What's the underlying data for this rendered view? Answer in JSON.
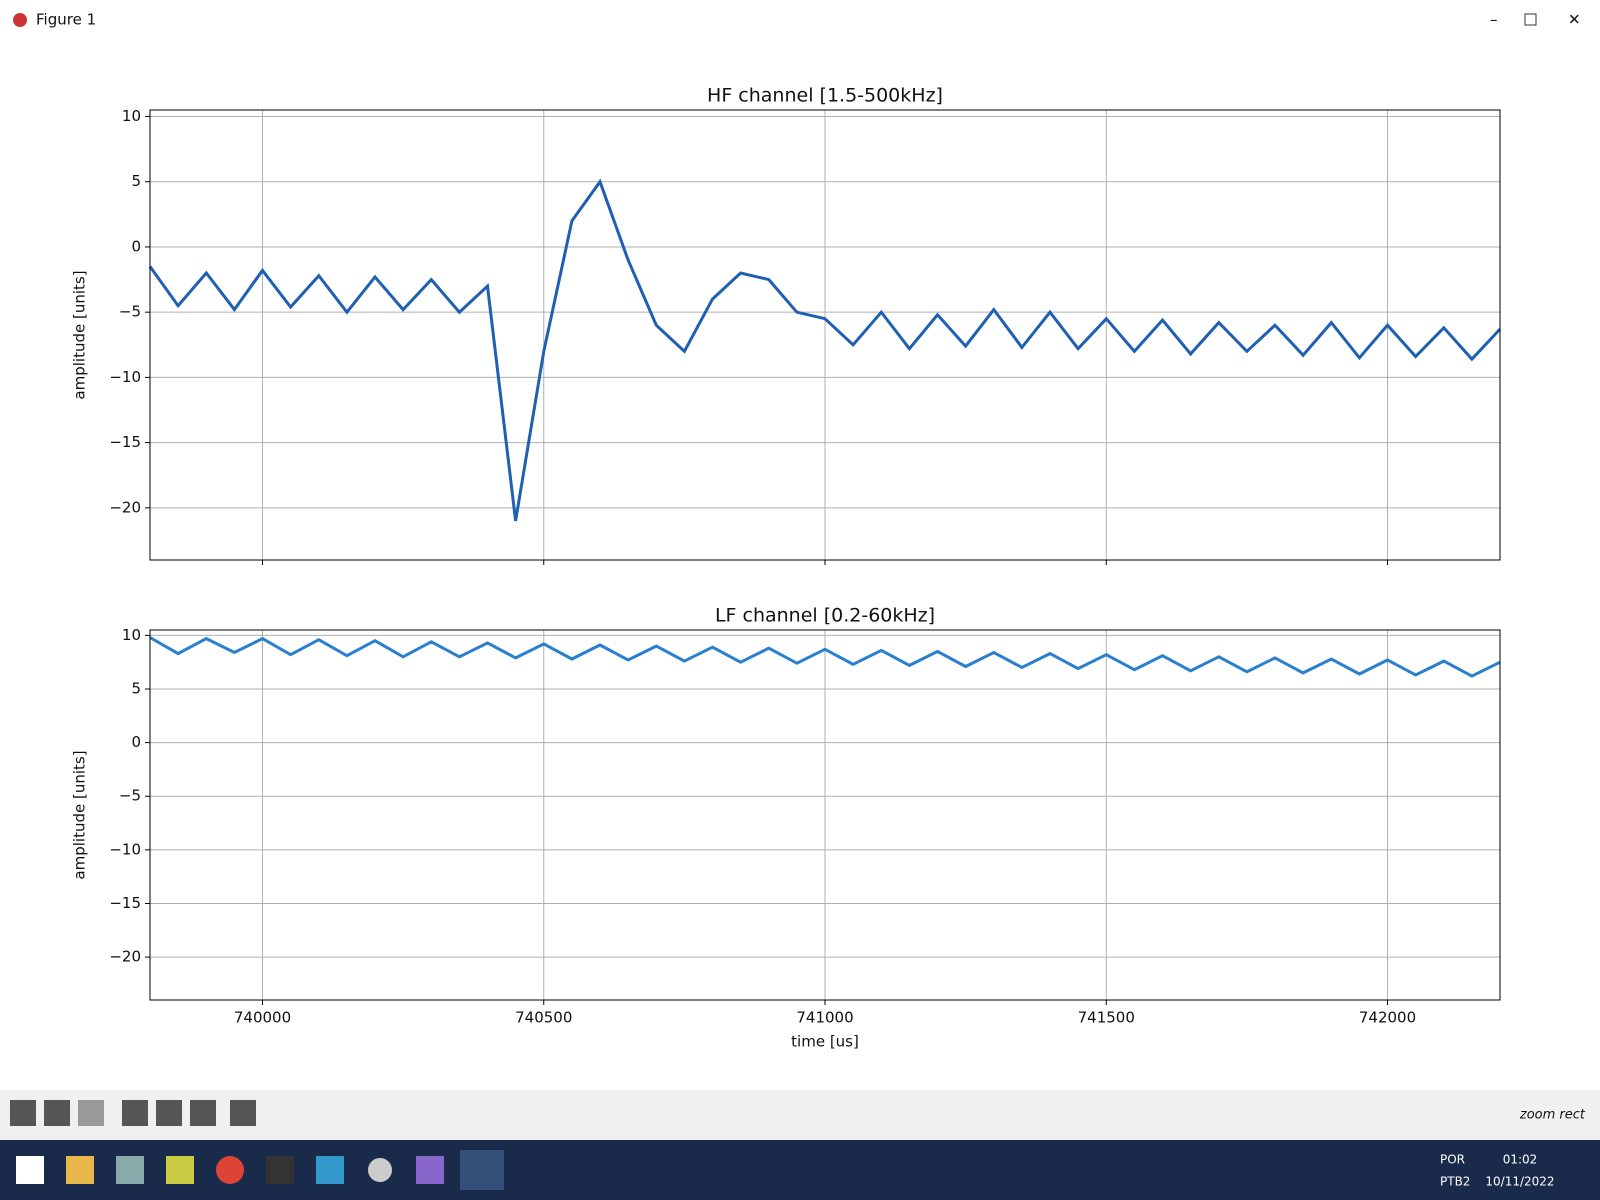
{
  "window": {
    "title": "Figure 1",
    "status": "zoom rect"
  },
  "taskbar": {
    "language": "POR",
    "layout": "PTB2",
    "time": "01:02",
    "date": "10/11/2022"
  },
  "chart_data": [
    {
      "type": "line",
      "title": "HF channel [1.5-500kHz]",
      "ylabel": "amplitude [units]",
      "color": "#1f5fb4",
      "grid": true,
      "xlim": [
        739800,
        742200
      ],
      "ylim": [
        -24,
        10.5
      ],
      "xticks": [
        740000,
        740500,
        741000,
        741500,
        742000
      ],
      "yticks": [
        {
          "value": -20,
          "label": "−20"
        },
        {
          "value": -15,
          "label": "−15"
        },
        {
          "value": -10,
          "label": "−10"
        },
        {
          "value": -5,
          "label": "−5"
        },
        0,
        5,
        10
      ],
      "x": [
        739800,
        739850,
        739900,
        739950,
        740000,
        740050,
        740100,
        740150,
        740200,
        740250,
        740300,
        740350,
        740400,
        740450,
        740500,
        740550,
        740600,
        740650,
        740700,
        740750,
        740800,
        740850,
        740900,
        740950,
        741000,
        741050,
        741100,
        741150,
        741200,
        741250,
        741300,
        741350,
        741400,
        741450,
        741500,
        741550,
        741600,
        741650,
        741700,
        741750,
        741800,
        741850,
        741900,
        741950,
        742000,
        742050,
        742100,
        742150,
        742200
      ],
      "values": [
        -1.5,
        -4.5,
        -2,
        -4.8,
        -1.8,
        -4.6,
        -2.2,
        -5,
        -2.3,
        -4.8,
        -2.5,
        -5,
        -3,
        -21,
        -8,
        2,
        5,
        -1,
        -6,
        -8,
        -4,
        -2,
        -2.5,
        -5,
        -5.5,
        -7.5,
        -5,
        -7.8,
        -5.2,
        -7.6,
        -4.8,
        -7.7,
        -5,
        -7.8,
        -5.5,
        -8,
        -5.6,
        -8.2,
        -5.8,
        -8,
        -6,
        -8.3,
        -5.8,
        -8.5,
        -6,
        -8.4,
        -6.2,
        -8.6,
        -6.3
      ]
    },
    {
      "type": "line",
      "title": "LF channel [0.2-60kHz]",
      "ylabel": "amplitude [units]",
      "xlabel": "time [us]",
      "color": "#2a7fd0",
      "grid": true,
      "xlim": [
        739800,
        742200
      ],
      "ylim": [
        -24,
        10.5
      ],
      "xticks": [
        740000,
        740500,
        741000,
        741500,
        742000
      ],
      "yticks": [
        {
          "value": -20,
          "label": "−20"
        },
        {
          "value": -15,
          "label": "−15"
        },
        {
          "value": -10,
          "label": "−10"
        },
        {
          "value": -5,
          "label": "−5"
        },
        0,
        5,
        10
      ],
      "x": [
        739800,
        739850,
        739900,
        739950,
        740000,
        740050,
        740100,
        740150,
        740200,
        740250,
        740300,
        740350,
        740400,
        740450,
        740500,
        740550,
        740600,
        740650,
        740700,
        740750,
        740800,
        740850,
        740900,
        740950,
        741000,
        741050,
        741100,
        741150,
        741200,
        741250,
        741300,
        741350,
        741400,
        741450,
        741500,
        741550,
        741600,
        741650,
        741700,
        741750,
        741800,
        741850,
        741900,
        741950,
        742000,
        742050,
        742100,
        742150,
        742200
      ],
      "values": [
        9.8,
        8.3,
        9.7,
        8.4,
        9.7,
        8.2,
        9.6,
        8.1,
        9.5,
        8.0,
        9.4,
        8.0,
        9.3,
        7.9,
        9.2,
        7.8,
        9.1,
        7.7,
        9.0,
        7.6,
        8.9,
        7.5,
        8.8,
        7.4,
        8.7,
        7.3,
        8.6,
        7.2,
        8.5,
        7.1,
        8.4,
        7.0,
        8.3,
        6.9,
        8.2,
        6.8,
        8.1,
        6.7,
        8.0,
        6.6,
        7.9,
        6.5,
        7.8,
        6.4,
        7.7,
        6.3,
        7.6,
        6.2,
        7.5
      ]
    }
  ]
}
